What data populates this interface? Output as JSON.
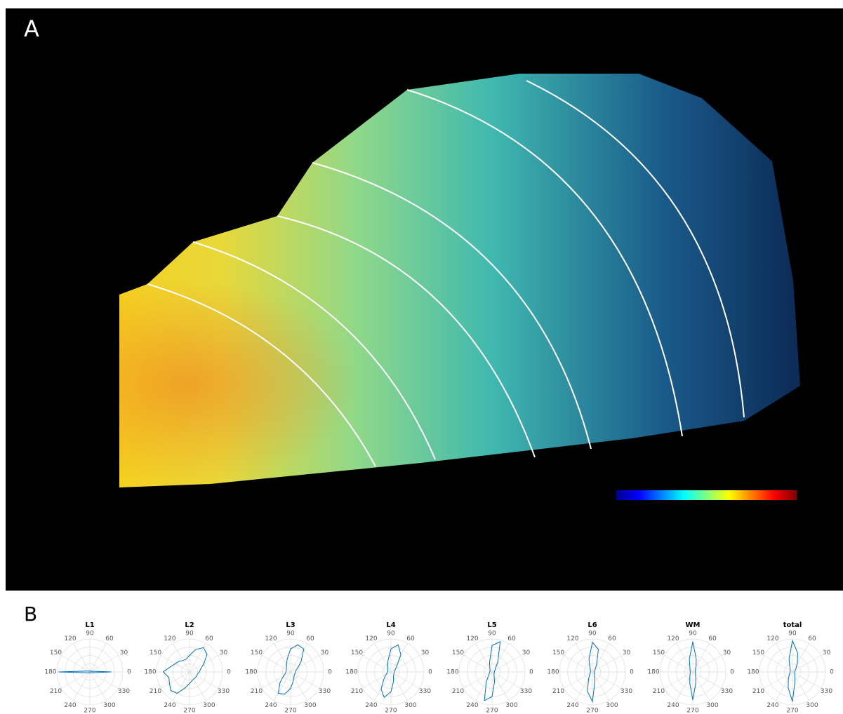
{
  "panels": {
    "a": "A",
    "b": "B"
  },
  "chart_data": [
    {
      "type": "polar",
      "title": "L1",
      "rlim": [
        0,
        1
      ],
      "color": "#0072bd",
      "thetaticks": [
        0,
        30,
        60,
        90,
        120,
        150,
        180,
        210,
        240,
        270,
        300,
        330
      ],
      "theta": [
        0,
        15,
        30,
        45,
        60,
        75,
        90,
        105,
        120,
        135,
        150,
        165,
        180,
        195,
        210,
        225,
        240,
        255,
        270,
        285,
        300,
        315,
        330,
        345
      ],
      "r": [
        0.65,
        0.08,
        0.04,
        0.03,
        0.03,
        0.03,
        0.03,
        0.03,
        0.03,
        0.03,
        0.05,
        0.1,
        0.95,
        0.1,
        0.05,
        0.03,
        0.03,
        0.03,
        0.03,
        0.03,
        0.03,
        0.03,
        0.04,
        0.09
      ]
    },
    {
      "type": "polar",
      "title": "L2",
      "rlim": [
        0,
        1
      ],
      "color": "#0072bd",
      "thetaticks": [
        0,
        30,
        60,
        90,
        120,
        150,
        180,
        210,
        240,
        270,
        300,
        330
      ],
      "theta": [
        0,
        15,
        30,
        45,
        60,
        75,
        90,
        105,
        120,
        135,
        150,
        165,
        180,
        195,
        210,
        225,
        240,
        255,
        270,
        285,
        300,
        315,
        330,
        345
      ],
      "r": [
        0.3,
        0.35,
        0.5,
        0.75,
        0.85,
        0.7,
        0.5,
        0.4,
        0.4,
        0.45,
        0.5,
        0.6,
        0.8,
        0.65,
        0.7,
        0.8,
        0.75,
        0.5,
        0.35,
        0.28,
        0.25,
        0.25,
        0.25,
        0.25
      ]
    },
    {
      "type": "polar",
      "title": "L3",
      "rlim": [
        0,
        1
      ],
      "color": "#0072bd",
      "thetaticks": [
        0,
        30,
        60,
        90,
        120,
        150,
        180,
        210,
        240,
        270,
        300,
        330
      ],
      "theta": [
        0,
        15,
        30,
        45,
        60,
        75,
        90,
        105,
        120,
        135,
        150,
        165,
        180,
        195,
        210,
        225,
        240,
        255,
        270,
        285,
        300,
        315,
        330,
        345
      ],
      "r": [
        0.15,
        0.17,
        0.25,
        0.45,
        0.8,
        0.85,
        0.7,
        0.4,
        0.25,
        0.18,
        0.15,
        0.14,
        0.14,
        0.16,
        0.25,
        0.45,
        0.75,
        0.7,
        0.5,
        0.3,
        0.2,
        0.15,
        0.14,
        0.14
      ]
    },
    {
      "type": "polar",
      "title": "L4",
      "rlim": [
        0,
        1
      ],
      "color": "#0072bd",
      "thetaticks": [
        0,
        30,
        60,
        90,
        120,
        150,
        180,
        210,
        240,
        270,
        300,
        330
      ],
      "theta": [
        0,
        15,
        30,
        45,
        60,
        75,
        90,
        105,
        120,
        135,
        150,
        165,
        180,
        195,
        210,
        225,
        240,
        255,
        270,
        285,
        300,
        315,
        330,
        345
      ],
      "r": [
        0.1,
        0.11,
        0.15,
        0.25,
        0.6,
        0.85,
        0.7,
        0.35,
        0.2,
        0.13,
        0.11,
        0.1,
        0.1,
        0.12,
        0.18,
        0.3,
        0.6,
        0.8,
        0.6,
        0.3,
        0.15,
        0.12,
        0.1,
        0.1
      ]
    },
    {
      "type": "polar",
      "title": "L5",
      "rlim": [
        0,
        1
      ],
      "color": "#0072bd",
      "thetaticks": [
        0,
        30,
        60,
        90,
        120,
        150,
        180,
        210,
        240,
        270,
        300,
        330
      ],
      "theta": [
        0,
        15,
        30,
        45,
        60,
        75,
        90,
        105,
        120,
        135,
        150,
        165,
        180,
        195,
        210,
        225,
        240,
        255,
        270,
        285,
        300,
        315,
        330,
        345
      ],
      "r": [
        0.07,
        0.08,
        0.1,
        0.15,
        0.35,
        0.95,
        0.8,
        0.3,
        0.13,
        0.09,
        0.07,
        0.07,
        0.07,
        0.08,
        0.1,
        0.15,
        0.35,
        0.9,
        0.75,
        0.3,
        0.12,
        0.09,
        0.07,
        0.07
      ]
    },
    {
      "type": "polar",
      "title": "L6",
      "rlim": [
        0,
        1
      ],
      "color": "#0072bd",
      "thetaticks": [
        0,
        30,
        60,
        90,
        120,
        150,
        180,
        210,
        240,
        270,
        300,
        330
      ],
      "theta": [
        0,
        15,
        30,
        45,
        60,
        75,
        90,
        105,
        120,
        135,
        150,
        165,
        180,
        195,
        210,
        225,
        240,
        255,
        270,
        285,
        300,
        315,
        330,
        345
      ],
      "r": [
        0.06,
        0.07,
        0.08,
        0.12,
        0.25,
        0.7,
        0.9,
        0.4,
        0.15,
        0.09,
        0.07,
        0.06,
        0.06,
        0.07,
        0.08,
        0.12,
        0.22,
        0.6,
        0.9,
        0.3,
        0.12,
        0.08,
        0.07,
        0.06
      ]
    },
    {
      "type": "polar",
      "title": "WM",
      "rlim": [
        0,
        1
      ],
      "color": "#0072bd",
      "thetaticks": [
        0,
        30,
        60,
        90,
        120,
        150,
        180,
        210,
        240,
        270,
        300,
        330
      ],
      "theta": [
        0,
        15,
        30,
        45,
        60,
        75,
        90,
        105,
        120,
        135,
        150,
        165,
        180,
        195,
        210,
        225,
        240,
        255,
        270,
        285,
        300,
        315,
        330,
        345
      ],
      "r": [
        0.08,
        0.08,
        0.09,
        0.12,
        0.2,
        0.4,
        0.92,
        0.4,
        0.18,
        0.12,
        0.09,
        0.08,
        0.08,
        0.08,
        0.09,
        0.12,
        0.18,
        0.35,
        0.85,
        0.35,
        0.18,
        0.12,
        0.09,
        0.08
      ]
    },
    {
      "type": "polar",
      "title": "total",
      "rlim": [
        0,
        1
      ],
      "color": "#0072bd",
      "thetaticks": [
        0,
        30,
        60,
        90,
        120,
        150,
        180,
        210,
        240,
        270,
        300,
        330
      ],
      "theta": [
        0,
        15,
        30,
        45,
        60,
        75,
        90,
        105,
        120,
        135,
        150,
        165,
        180,
        195,
        210,
        225,
        240,
        255,
        270,
        285,
        300,
        315,
        330,
        345
      ],
      "r": [
        0.07,
        0.08,
        0.1,
        0.15,
        0.3,
        0.6,
        0.95,
        0.4,
        0.15,
        0.1,
        0.08,
        0.07,
        0.07,
        0.08,
        0.1,
        0.14,
        0.25,
        0.5,
        0.9,
        0.3,
        0.14,
        0.1,
        0.08,
        0.07
      ]
    }
  ]
}
